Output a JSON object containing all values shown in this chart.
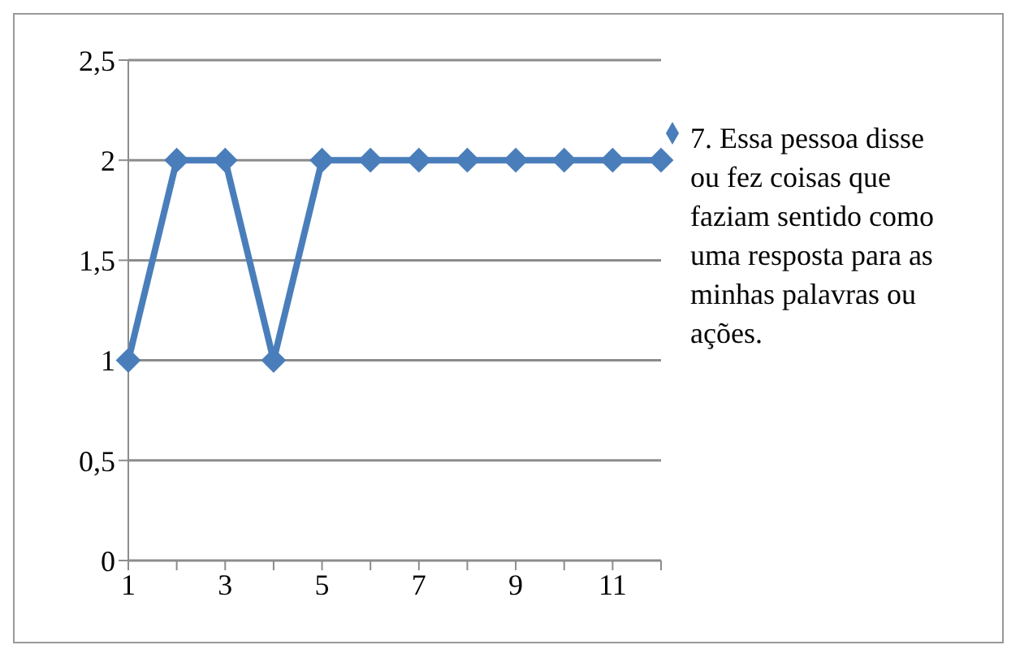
{
  "chart_data": {
    "type": "line",
    "categories": [
      "1",
      null,
      "3",
      null,
      "5",
      null,
      "7",
      null,
      "9",
      null,
      "11",
      null
    ],
    "series": [
      {
        "name": "7. Essa pessoa disse ou fez coisas que faziam sentido como uma resposta para as minhas palavras ou ações.",
        "color": "#4a7ebb",
        "values": [
          1,
          2,
          2,
          1,
          2,
          2,
          2,
          2,
          2,
          2,
          2,
          2
        ]
      }
    ],
    "ylim": [
      0,
      2.5
    ],
    "yticks": [
      {
        "value": 0,
        "label": "0"
      },
      {
        "value": 0.5,
        "label": "0,5"
      },
      {
        "value": 1,
        "label": "1"
      },
      {
        "value": 1.5,
        "label": "1,5"
      },
      {
        "value": 2,
        "label": "2"
      },
      {
        "value": 2.5,
        "label": "2,5"
      }
    ],
    "grid": "y",
    "legend": "right",
    "marker": "diamond",
    "line_style": "solid"
  }
}
